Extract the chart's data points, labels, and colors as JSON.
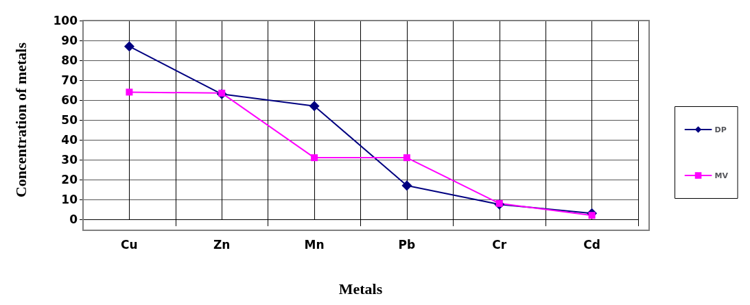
{
  "chart_data": {
    "type": "line",
    "xlabel": "Metals",
    "ylabel": "Concentration of metals",
    "categories": [
      "Cu",
      "Zn",
      "Mn",
      "Pb",
      "Cr",
      "Cd"
    ],
    "series": [
      {
        "name": "DP",
        "color": "#000080",
        "marker": "diamond",
        "values": [
          87,
          63,
          57,
          17,
          7.5,
          3
        ]
      },
      {
        "name": "MV",
        "color": "#ff00ff",
        "marker": "square",
        "values": [
          64,
          63.5,
          31,
          31,
          8,
          2
        ]
      }
    ],
    "ylim": [
      0,
      100
    ],
    "yticks": [
      0,
      10,
      20,
      30,
      40,
      50,
      60,
      70,
      80,
      90,
      100
    ],
    "grid": true,
    "legend": "right",
    "line_style": "solid"
  }
}
